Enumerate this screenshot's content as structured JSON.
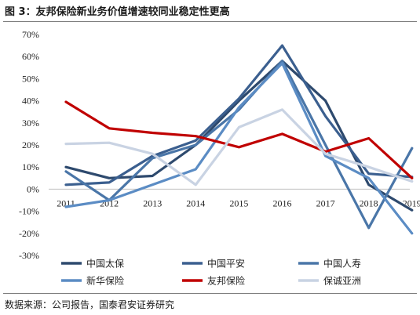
{
  "figure": {
    "title": "图 3：友邦保险新业务价值增速较同业稳定性更高",
    "source": "数据来源：公司报告，国泰君安证券研究"
  },
  "chart_data": {
    "type": "line",
    "title": "",
    "xlabel": "",
    "ylabel": "",
    "x": [
      "2011",
      "2012",
      "2013",
      "2014",
      "2015",
      "2016",
      "2017",
      "2018",
      "2019"
    ],
    "ylim": [
      -30,
      70
    ],
    "ytick_step": 10,
    "ytick_labels": [
      "70%",
      "60%",
      "50%",
      "40%",
      "30%",
      "20%",
      "10%",
      "0%",
      "-10%",
      "-20%",
      "-30%"
    ],
    "grid": false,
    "legend_position": "bottom",
    "series": [
      {
        "name": "中国太保",
        "color": "#2e4a6e",
        "values": [
          10,
          5,
          6,
          20,
          40,
          58,
          40,
          2,
          -9.5
        ]
      },
      {
        "name": "中国平安",
        "color": "#3b5f8f",
        "values": [
          2,
          3,
          15,
          22,
          41,
          65,
          33,
          7,
          5.5
        ]
      },
      {
        "name": "中国人寿",
        "color": "#4a76a8",
        "values": [
          8,
          -5,
          14,
          20,
          36,
          58,
          20,
          -17.5,
          18.5
        ]
      },
      {
        "name": "新华保险",
        "color": "#5b8cc4",
        "values": [
          -8,
          -5,
          2,
          9,
          37,
          57,
          15,
          5,
          -20
        ]
      },
      {
        "name": "友邦保险",
        "color": "#c00000",
        "values": [
          39.5,
          27.5,
          25.5,
          24,
          19,
          25,
          17,
          23,
          5
        ]
      },
      {
        "name": "保诚亚洲",
        "color": "#c9d3e3",
        "values": [
          20.5,
          21,
          16,
          2,
          28,
          36,
          16,
          10,
          3.5
        ]
      }
    ]
  }
}
